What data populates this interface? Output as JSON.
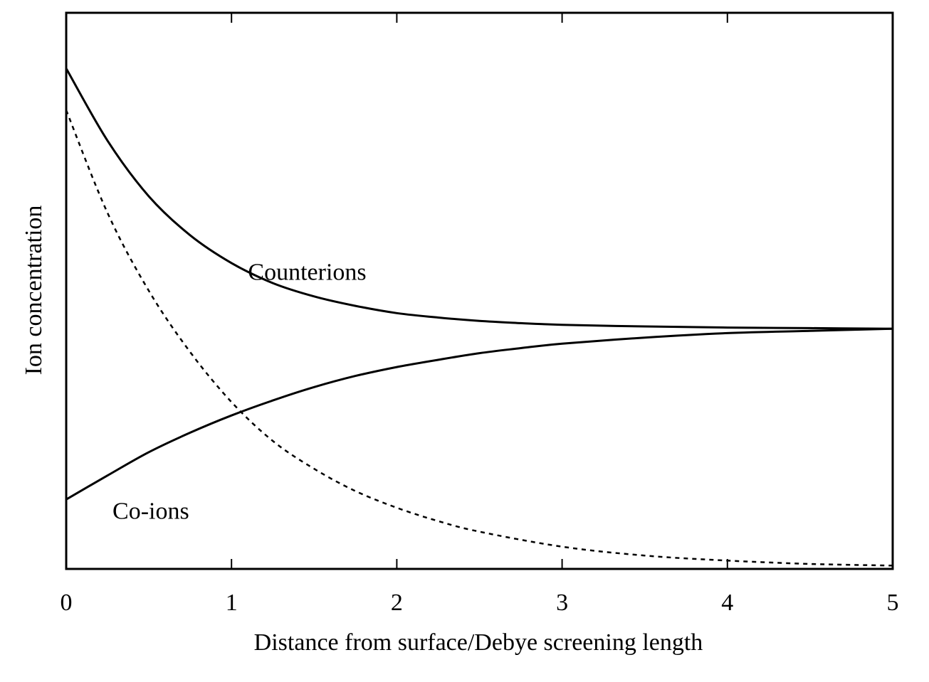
{
  "chart_data": {
    "type": "line",
    "title": "",
    "xlabel": "Distance from surface/Debye screening length",
    "ylabel": "Ion concentration",
    "xlim": [
      0,
      5
    ],
    "ylim": [
      0,
      1
    ],
    "xticks": [
      "0",
      "1",
      "2",
      "3",
      "4",
      "5"
    ],
    "yticks": [],
    "grid": false,
    "legend": "none",
    "annotations": [
      {
        "text": "Counterions",
        "x": 1.1,
        "y": 0.52
      },
      {
        "text": "Co-ions",
        "x": 0.28,
        "y": 0.09
      }
    ],
    "series": [
      {
        "style": "solid",
        "x": [
          0,
          0.25,
          0.5,
          0.75,
          1,
          1.25,
          1.5,
          1.75,
          2,
          2.25,
          2.5,
          2.75,
          3,
          3.5,
          4,
          4.5,
          5
        ],
        "y": [
          0.9,
          0.77,
          0.67,
          0.6,
          0.55,
          0.514,
          0.49,
          0.473,
          0.46,
          0.452,
          0.446,
          0.442,
          0.439,
          0.436,
          0.434,
          0.433,
          0.432
        ]
      },
      {
        "style": "solid",
        "x": [
          0,
          0.25,
          0.5,
          0.75,
          1,
          1.25,
          1.5,
          1.75,
          2,
          2.25,
          2.5,
          2.75,
          3,
          3.5,
          4,
          4.5,
          5
        ],
        "y": [
          0.125,
          0.168,
          0.21,
          0.245,
          0.276,
          0.303,
          0.327,
          0.347,
          0.363,
          0.376,
          0.388,
          0.397,
          0.405,
          0.416,
          0.424,
          0.428,
          0.432
        ]
      },
      {
        "style": "dotted",
        "x": [
          0,
          0.25,
          0.5,
          0.75,
          1,
          1.25,
          1.5,
          1.75,
          2,
          2.25,
          2.5,
          3,
          3.5,
          4,
          4.5,
          5
        ],
        "y": [
          0.825,
          0.64,
          0.5,
          0.39,
          0.3,
          0.23,
          0.18,
          0.14,
          0.11,
          0.086,
          0.067,
          0.04,
          0.024,
          0.015,
          0.009,
          0.006
        ]
      }
    ]
  }
}
